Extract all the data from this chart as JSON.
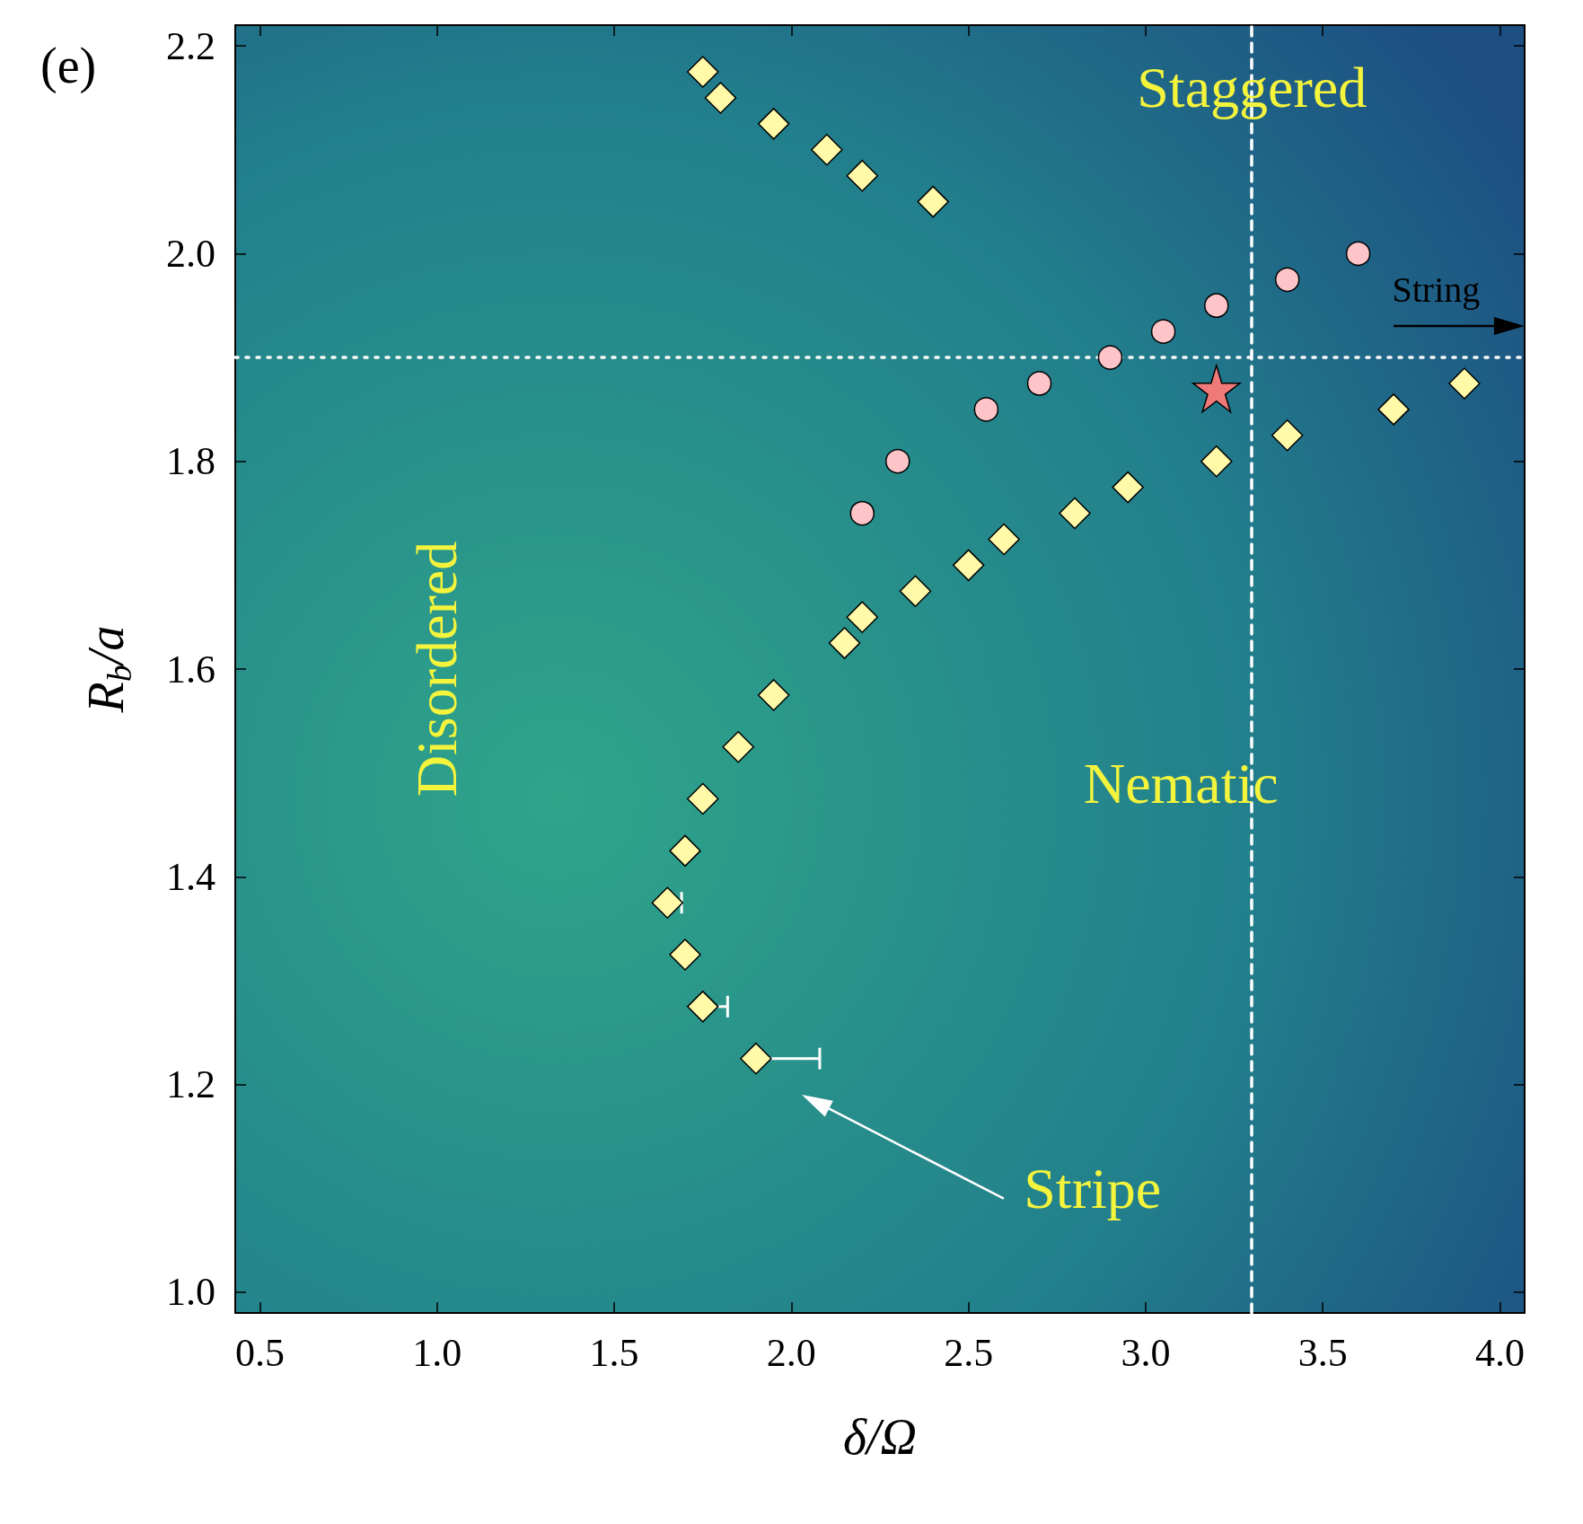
{
  "chart_data": {
    "type": "scatter",
    "xlabel": "δ/Ω",
    "ylabel": "R$_{b}$/a",
    "xlim": [
      0.43,
      4.07
    ],
    "ylim": [
      0.98,
      2.22
    ],
    "xticks": [
      0.5,
      {
        "value": 1,
        "label": "1.0"
      },
      1.5,
      {
        "value": 2,
        "label": "2.0"
      },
      2.5,
      {
        "value": 3,
        "label": "3.0"
      },
      3.5,
      {
        "value": 4,
        "label": "4.0"
      }
    ],
    "yticks": [
      {
        "value": 1,
        "label": "1.0"
      },
      1.2,
      1.4,
      1.6,
      1.8,
      {
        "value": 2,
        "label": "2.0"
      },
      2.2
    ],
    "grid": false,
    "series": [
      {
        "color": "#fff9a8",
        "marker": "diamond",
        "x": [
          1.75,
          1.8,
          1.95,
          2.1,
          2.2,
          2.4
        ],
        "values": [
          2.175,
          2.15,
          2.125,
          2.1,
          2.075,
          2.05
        ]
      },
      {
        "color": "#fff9a8",
        "marker": "diamond",
        "x": [
          1.9,
          1.75,
          1.7,
          1.65,
          1.7,
          1.75,
          1.85,
          1.95,
          2.15,
          2.2,
          2.35,
          2.5,
          2.6,
          2.8,
          2.95,
          3.2,
          3.4,
          3.7,
          3.9
        ],
        "values": [
          1.225,
          1.275,
          1.325,
          1.375,
          1.425,
          1.475,
          1.525,
          1.575,
          1.625,
          1.65,
          1.675,
          1.7,
          1.725,
          1.75,
          1.775,
          1.8,
          1.825,
          1.85,
          1.875
        ],
        "xerrors": [
          [
            1.9,
            2.08
          ],
          [
            1.75,
            1.82
          ],
          null,
          [
            1.65,
            1.69
          ],
          null,
          null,
          null,
          null,
          null,
          null,
          null,
          null,
          null,
          null,
          null,
          null,
          null,
          null,
          null
        ]
      },
      {
        "color": "#ffc4c8",
        "marker": "circle",
        "x": [
          2.2,
          2.3,
          2.55,
          2.7,
          2.9,
          3.05,
          3.2,
          3.4,
          3.6
        ],
        "values": [
          1.75,
          1.8,
          1.85,
          1.875,
          1.9,
          1.925,
          1.95,
          1.975,
          2.0
        ]
      },
      {
        "color": "#f07a7a",
        "marker": "star",
        "x": [
          3.2
        ],
        "values": [
          1.87
        ]
      }
    ],
    "ref_lines": [
      {
        "axis": "y",
        "value": 1.9,
        "color": "#ffffff",
        "line_style": "dotted"
      },
      {
        "axis": "x",
        "value": 3.3,
        "color": "#ffffff",
        "line_style": "dashed"
      }
    ],
    "annotations": [
      "(e)",
      "Staggered",
      "Disordered",
      "Nematic",
      "String",
      "Stripe"
    ]
  }
}
